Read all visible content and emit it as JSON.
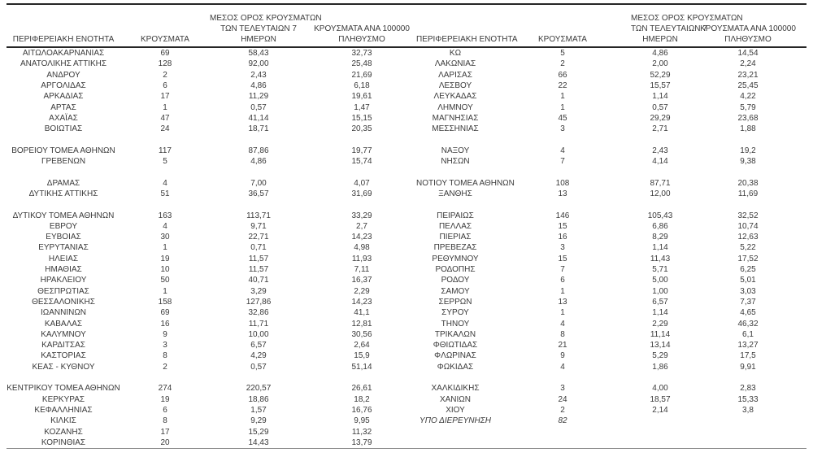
{
  "colors": {
    "background": "#ffffff",
    "text": "#3a3a3a",
    "rule_dark": "#262626",
    "rule_bottom": "#8c8c8c"
  },
  "headers": {
    "region": "ΠΕΡΙΦΕΡΕΙΑΚΗ ΕΝΟΤΗΤΑ",
    "cases": "ΚΡΟΥΣΜΑΤΑ",
    "avg7": "ΜΕΣΟΣ ΟΡΟΣ ΚΡΟΥΣΜΑΤΩΝ\nΤΩΝ ΤΕΛΕΥΤΑΙΩΝ 7\nΗΜΕΡΩΝ",
    "per100k": "ΚΡΟΥΣΜΑΤΑ ΑΝΑ 100000\nΠΛΗΘΥΣΜΟ"
  },
  "rows": {
    "left": [
      {
        "region": "ΑΙΤΩΛΟΑΚΑΡΝΑΝΙΑΣ",
        "cases": "69",
        "avg": "58,43",
        "per100k": "32,73"
      },
      {
        "region": "ΑΝΑΤΟΛΙΚΗΣ ΑΤΤΙΚΗΣ",
        "cases": "128",
        "avg": "92,00",
        "per100k": "25,48"
      },
      {
        "region": "ΑΝΔΡΟΥ",
        "cases": "2",
        "avg": "2,43",
        "per100k": "21,69"
      },
      {
        "region": "ΑΡΓΟΛΙΔΑΣ",
        "cases": "6",
        "avg": "4,86",
        "per100k": "6,18"
      },
      {
        "region": "ΑΡΚΑΔΙΑΣ",
        "cases": "17",
        "avg": "11,29",
        "per100k": "19,61"
      },
      {
        "region": "ΑΡΤΑΣ",
        "cases": "1",
        "avg": "0,57",
        "per100k": "1,47"
      },
      {
        "region": "ΑΧΑΪΑΣ",
        "cases": "47",
        "avg": "41,14",
        "per100k": "15,15"
      },
      {
        "region": "ΒΟΙΩΤΙΑΣ",
        "cases": "24",
        "avg": "18,71",
        "per100k": "20,35"
      },
      {},
      {
        "region": "ΒΟΡΕΙΟΥ ΤΟΜΕΑ ΑΘΗΝΩΝ",
        "cases": "117",
        "avg": "87,86",
        "per100k": "19,77"
      },
      {
        "region": "ΓΡΕΒΕΝΩΝ",
        "cases": "5",
        "avg": "4,86",
        "per100k": "15,74"
      },
      {},
      {
        "region": "ΔΡΑΜΑΣ",
        "cases": "4",
        "avg": "7,00",
        "per100k": "4,07"
      },
      {
        "region": "ΔΥΤΙΚΗΣ ΑΤΤΙΚΗΣ",
        "cases": "51",
        "avg": "36,57",
        "per100k": "31,69"
      },
      {},
      {
        "region": "ΔΥΤΙΚΟΥ ΤΟΜΕΑ ΑΘΗΝΩΝ",
        "cases": "163",
        "avg": "113,71",
        "per100k": "33,29"
      },
      {
        "region": "ΕΒΡΟΥ",
        "cases": "4",
        "avg": "9,71",
        "per100k": "2,7"
      },
      {
        "region": "ΕΥΒΟΙΑΣ",
        "cases": "30",
        "avg": "22,71",
        "per100k": "14,23"
      },
      {
        "region": "ΕΥΡΥΤΑΝΙΑΣ",
        "cases": "1",
        "avg": "0,71",
        "per100k": "4,98"
      },
      {
        "region": "ΗΛΕΙΑΣ",
        "cases": "19",
        "avg": "11,57",
        "per100k": "11,93"
      },
      {
        "region": "ΗΜΑΘΙΑΣ",
        "cases": "10",
        "avg": "11,57",
        "per100k": "7,11"
      },
      {
        "region": "ΗΡΑΚΛΕΙΟΥ",
        "cases": "50",
        "avg": "40,71",
        "per100k": "16,37"
      },
      {
        "region": "ΘΕΣΠΡΩΤΙΑΣ",
        "cases": "1",
        "avg": "3,29",
        "per100k": "2,29"
      },
      {
        "region": "ΘΕΣΣΑΛΟΝΙΚΗΣ",
        "cases": "158",
        "avg": "127,86",
        "per100k": "14,23"
      },
      {
        "region": "ΙΩΑΝΝΙΝΩΝ",
        "cases": "69",
        "avg": "32,86",
        "per100k": "41,1"
      },
      {
        "region": "ΚΑΒΑΛΑΣ",
        "cases": "16",
        "avg": "11,71",
        "per100k": "12,81"
      },
      {
        "region": "ΚΑΛΥΜΝΟΥ",
        "cases": "9",
        "avg": "10,00",
        "per100k": "30,56"
      },
      {
        "region": "ΚΑΡΔΙΤΣΑΣ",
        "cases": "3",
        "avg": "6,57",
        "per100k": "2,64"
      },
      {
        "region": "ΚΑΣΤΟΡΙΑΣ",
        "cases": "8",
        "avg": "4,29",
        "per100k": "15,9"
      },
      {
        "region": "ΚΕΑΣ - ΚΥΘΝΟΥ",
        "cases": "2",
        "avg": "0,57",
        "per100k": "51,14"
      },
      {},
      {
        "region": "ΚΕΝΤΡΙΚΟΥ ΤΟΜΕΑ ΑΘΗΝΩΝ",
        "cases": "274",
        "avg": "220,57",
        "per100k": "26,61"
      },
      {
        "region": "ΚΕΡΚΥΡΑΣ",
        "cases": "19",
        "avg": "18,86",
        "per100k": "18,2"
      },
      {
        "region": "ΚΕΦΑΛΛΗΝΙΑΣ",
        "cases": "6",
        "avg": "1,57",
        "per100k": "16,76"
      },
      {
        "region": "ΚΙΛΚΙΣ",
        "cases": "8",
        "avg": "9,29",
        "per100k": "9,95"
      },
      {
        "region": "ΚΟΖΑΝΗΣ",
        "cases": "17",
        "avg": "15,29",
        "per100k": "11,32"
      },
      {
        "region": "ΚΟΡΙΝΘΙΑΣ",
        "cases": "20",
        "avg": "14,43",
        "per100k": "13,79"
      }
    ],
    "right": [
      {
        "region": "ΚΩ",
        "cases": "5",
        "avg": "4,86",
        "per100k": "14,54"
      },
      {
        "region": "ΛΑΚΩΝΙΑΣ",
        "cases": "2",
        "avg": "2,00",
        "per100k": "2,24"
      },
      {
        "region": "ΛΑΡΙΣΑΣ",
        "cases": "66",
        "avg": "52,29",
        "per100k": "23,21"
      },
      {
        "region": "ΛΕΣΒΟΥ",
        "cases": "22",
        "avg": "15,57",
        "per100k": "25,45"
      },
      {
        "region": "ΛΕΥΚΑΔΑΣ",
        "cases": "1",
        "avg": "1,14",
        "per100k": "4,22"
      },
      {
        "region": "ΛΗΜΝΟΥ",
        "cases": "1",
        "avg": "0,57",
        "per100k": "5,79"
      },
      {
        "region": "ΜΑΓΝΗΣΙΑΣ",
        "cases": "45",
        "avg": "29,29",
        "per100k": "23,68"
      },
      {
        "region": "ΜΕΣΣΗΝΙΑΣ",
        "cases": "3",
        "avg": "2,71",
        "per100k": "1,88"
      },
      {},
      {
        "region": "ΝΑΞΟΥ",
        "cases": "4",
        "avg": "2,43",
        "per100k": "19,2"
      },
      {
        "region": "ΝΗΣΩΝ",
        "cases": "7",
        "avg": "4,14",
        "per100k": "9,38"
      },
      {},
      {
        "region": "ΝΟΤΙΟΥ ΤΟΜΕΑ ΑΘΗΝΩΝ",
        "cases": "108",
        "avg": "87,71",
        "per100k": "20,38"
      },
      {
        "region": "ΞΑΝΘΗΣ",
        "cases": "13",
        "avg": "12,00",
        "per100k": "11,69"
      },
      {},
      {
        "region": "ΠΕΙΡΑΙΩΣ",
        "cases": "146",
        "avg": "105,43",
        "per100k": "32,52"
      },
      {
        "region": "ΠΕΛΛΑΣ",
        "cases": "15",
        "avg": "6,86",
        "per100k": "10,74"
      },
      {
        "region": "ΠΙΕΡΙΑΣ",
        "cases": "16",
        "avg": "8,29",
        "per100k": "12,63"
      },
      {
        "region": "ΠΡΕΒΕΖΑΣ",
        "cases": "3",
        "avg": "1,14",
        "per100k": "5,22"
      },
      {
        "region": "ΡΕΘΥΜΝΟΥ",
        "cases": "15",
        "avg": "11,43",
        "per100k": "17,52"
      },
      {
        "region": "ΡΟΔΟΠΗΣ",
        "cases": "7",
        "avg": "5,71",
        "per100k": "6,25"
      },
      {
        "region": "ΡΟΔΟΥ",
        "cases": "6",
        "avg": "5,00",
        "per100k": "5,01"
      },
      {
        "region": "ΣΑΜΟΥ",
        "cases": "1",
        "avg": "1,00",
        "per100k": "3,03"
      },
      {
        "region": "ΣΕΡΡΩΝ",
        "cases": "13",
        "avg": "6,57",
        "per100k": "7,37"
      },
      {
        "region": "ΣΥΡΟΥ",
        "cases": "1",
        "avg": "1,14",
        "per100k": "4,65"
      },
      {
        "region": "ΤΗΝΟΥ",
        "cases": "4",
        "avg": "2,29",
        "per100k": "46,32"
      },
      {
        "region": "ΤΡΙΚΑΛΩΝ",
        "cases": "8",
        "avg": "11,14",
        "per100k": "6,1"
      },
      {
        "region": "ΦΘΙΩΤΙΔΑΣ",
        "cases": "21",
        "avg": "13,14",
        "per100k": "13,27"
      },
      {
        "region": "ΦΛΩΡΙΝΑΣ",
        "cases": "9",
        "avg": "5,29",
        "per100k": "17,5"
      },
      {
        "region": "ΦΩΚΙΔΑΣ",
        "cases": "4",
        "avg": "1,86",
        "per100k": "9,91"
      },
      {},
      {
        "region": "ΧΑΛΚΙΔΙΚΗΣ",
        "cases": "3",
        "avg": "4,00",
        "per100k": "2,83"
      },
      {
        "region": "ΧΑΝΙΩΝ",
        "cases": "24",
        "avg": "18,57",
        "per100k": "15,33"
      },
      {
        "region": "ΧΙΟΥ",
        "cases": "2",
        "avg": "2,14",
        "per100k": "3,8"
      },
      {
        "region": "ΥΠΟ ΔΙΕΡΕΥΝΗΣΗ",
        "cases": "82",
        "avg": "",
        "per100k": "",
        "italic": true
      },
      {},
      {}
    ]
  }
}
